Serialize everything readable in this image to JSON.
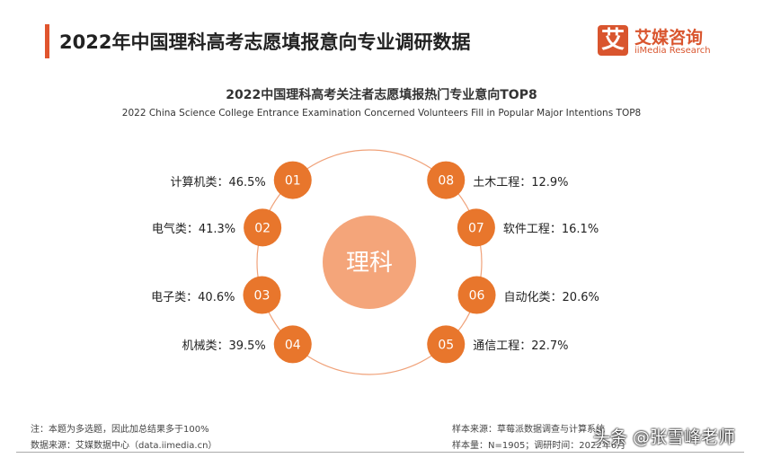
{
  "header": {
    "title": "2022年中国理科高考志愿填报意向专业调研数据",
    "logo_mark": "艾",
    "logo_cn": "艾媒咨询",
    "logo_en": "iiMedia Research"
  },
  "chart_data": {
    "type": "radial-list",
    "title": "2022中国理科高考关注者志愿填报热门专业意向TOP8",
    "subtitle": "2022 China Science College Entrance Examination Concerned Volunteers Fill in Popular Major Intentions TOP8",
    "center_label": "理科",
    "items": [
      {
        "rank": "01",
        "name": "计算机类",
        "value": 46.5,
        "text": "计算机类：46.5%"
      },
      {
        "rank": "02",
        "name": "电气类",
        "value": 41.3,
        "text": "电气类：41.3%"
      },
      {
        "rank": "03",
        "name": "电子类",
        "value": 40.6,
        "text": "电子类：40.6%"
      },
      {
        "rank": "04",
        "name": "机械类",
        "value": 39.5,
        "text": "机械类：39.5%"
      },
      {
        "rank": "05",
        "name": "通信工程",
        "value": 22.7,
        "text": "通信工程：22.7%"
      },
      {
        "rank": "06",
        "name": "自动化类",
        "value": 20.6,
        "text": "自动化类：20.6%"
      },
      {
        "rank": "07",
        "name": "软件工程",
        "value": 16.1,
        "text": "软件工程：16.1%"
      },
      {
        "rank": "08",
        "name": "土木工程",
        "value": 12.9,
        "text": "土木工程：12.9%"
      }
    ],
    "colors": {
      "node": "#e8762c",
      "center": "#f4a57a",
      "ring": "#f0a27a"
    }
  },
  "footer": {
    "note": "注：本题为多选题，因此加总结果多于100%",
    "source": "数据来源：艾媒数据中心（data.iimedia.cn）",
    "sample_source": "样本来源：草莓派数据调查与计算系统",
    "sample_size": "样本量：N=1905；调研时间：2022年6月",
    "watermark": "头条 @张雪峰老师"
  }
}
